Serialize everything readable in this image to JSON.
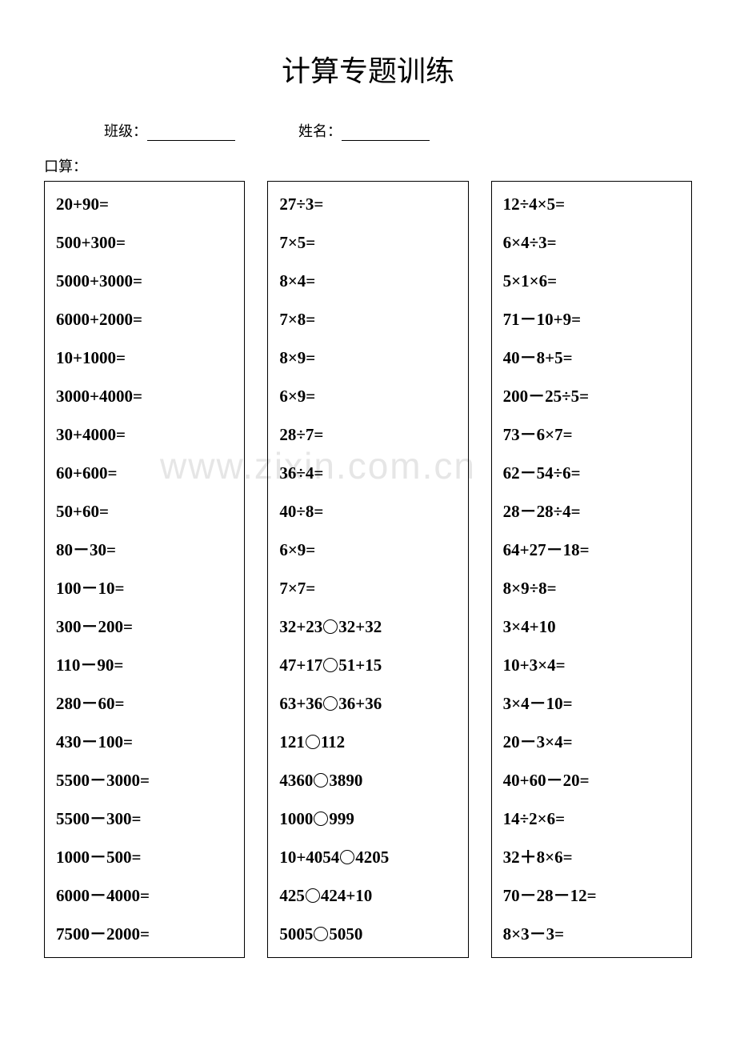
{
  "title": "计算专题训练",
  "header": {
    "class_label": "班级：",
    "name_label": "姓名："
  },
  "section_label": "口算：",
  "watermark": "www.zixin.com.cn",
  "columns": [
    {
      "items": [
        "20+90=",
        "500+300=",
        "5000+3000=",
        "6000+2000=",
        "10+1000=",
        "3000+4000=",
        "30+4000=",
        "60+600=",
        "50+60=",
        "80－30=",
        "100－10=",
        "300－200=",
        "110－90=",
        "280－60=",
        "430－100=",
        "5500－3000=",
        "5500－300=",
        "1000－500=",
        "6000－4000=",
        "7500－2000="
      ]
    },
    {
      "items": [
        "27÷3=",
        "7×5=",
        "8×4=",
        "7×8=",
        "8×9=",
        "6×9=",
        "28÷7=",
        "36÷4=",
        "40÷8=",
        "6×9=",
        "7×7=",
        "32+23○32+32",
        "47+17○51+15",
        "63+36○36+36",
        "121○112",
        "4360○3890",
        "1000○999",
        "10+4054○4205",
        "425○424+10",
        "5005○5050"
      ]
    },
    {
      "items": [
        "12÷4×5=",
        "6×4÷3=",
        "5×1×6=",
        "71－10+9=",
        "40－8+5=",
        "200－25÷5=",
        "73－6×7=",
        "62－54÷6=",
        "28－28÷4=",
        "64+27－18=",
        "8×9÷8=",
        "3×4+10",
        "10+3×4=",
        "3×4－10=",
        "20－3×4=",
        "40+60－20=",
        "14÷2×6=",
        "32＋8×6=",
        "70－28－12=",
        "8×3－3="
      ]
    }
  ]
}
